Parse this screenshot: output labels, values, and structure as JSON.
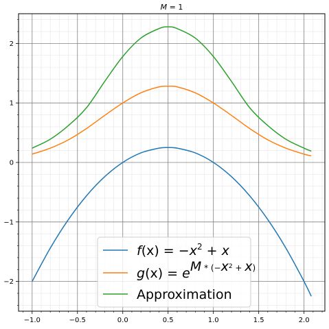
{
  "chart_data": {
    "type": "line",
    "title_parts": {
      "var": "M",
      "rest": " = 1"
    },
    "xlim": [
      -1.15,
      2.23
    ],
    "ylim": [
      -2.5,
      2.5
    ],
    "x_ticks": [
      -1.0,
      -0.5,
      0.0,
      0.5,
      1.0,
      1.5,
      2.0
    ],
    "x_tick_labels": [
      "−1.0",
      "−0.5",
      "0.0",
      "0.5",
      "1.0",
      "1.5",
      "2.0"
    ],
    "y_ticks": [
      -2,
      -1,
      0,
      1,
      2
    ],
    "y_tick_labels": [
      "−2",
      "−1",
      "0",
      "1",
      "2"
    ],
    "grid": {
      "major": true,
      "minor": true
    },
    "legend_position": "lower center",
    "x_range": [
      -1.0,
      2.08
    ],
    "series": [
      {
        "name": "f(x) = −x² + x",
        "color": "#1f77b4",
        "x": [
          -1.0,
          -0.8,
          -0.6,
          -0.4,
          -0.2,
          0.0,
          0.2,
          0.4,
          0.5,
          0.6,
          0.8,
          1.0,
          1.2,
          1.4,
          1.6,
          1.8,
          2.0,
          2.08
        ],
        "y": [
          -2.0,
          -1.44,
          -0.96,
          -0.56,
          -0.24,
          0.0,
          0.16,
          0.24,
          0.25,
          0.24,
          0.16,
          0.0,
          -0.24,
          -0.56,
          -0.96,
          -1.44,
          -2.0,
          -2.25
        ]
      },
      {
        "name": "g(x) = e^{M*(−x²+x)}",
        "color": "#ff7f0e",
        "x": [
          -1.0,
          -0.8,
          -0.6,
          -0.4,
          -0.2,
          0.0,
          0.2,
          0.4,
          0.5,
          0.6,
          0.8,
          1.0,
          1.2,
          1.4,
          1.6,
          1.8,
          2.0,
          2.08
        ],
        "y": [
          0.14,
          0.24,
          0.38,
          0.57,
          0.79,
          1.0,
          1.17,
          1.27,
          1.28,
          1.27,
          1.17,
          1.0,
          0.79,
          0.57,
          0.38,
          0.24,
          0.14,
          0.11
        ]
      },
      {
        "name": "Approximation",
        "color": "#2ca02c",
        "x": [
          -1.0,
          -0.8,
          -0.6,
          -0.4,
          -0.2,
          0.0,
          0.2,
          0.4,
          0.5,
          0.6,
          0.8,
          1.0,
          1.2,
          1.4,
          1.6,
          1.8,
          2.0,
          2.08
        ],
        "y": [
          0.24,
          0.39,
          0.62,
          0.92,
          1.36,
          1.78,
          2.09,
          2.25,
          2.28,
          2.25,
          2.09,
          1.78,
          1.36,
          0.92,
          0.62,
          0.39,
          0.24,
          0.19
        ]
      }
    ],
    "legend": {
      "f": {
        "fx": "f",
        "paren": "(x) = −",
        "x2": "x",
        "sup": "2",
        "tail": " + ",
        "xend": "x"
      },
      "g": {
        "g": "g",
        "paren": "(x) = ",
        "e": "e",
        "supM": "M",
        "supRest": " * (−",
        "supX": "x",
        "supTwo": "2",
        "supPlus": " + ",
        "supX2": "x",
        "supClose": ")"
      },
      "approx": "Approximation"
    }
  }
}
